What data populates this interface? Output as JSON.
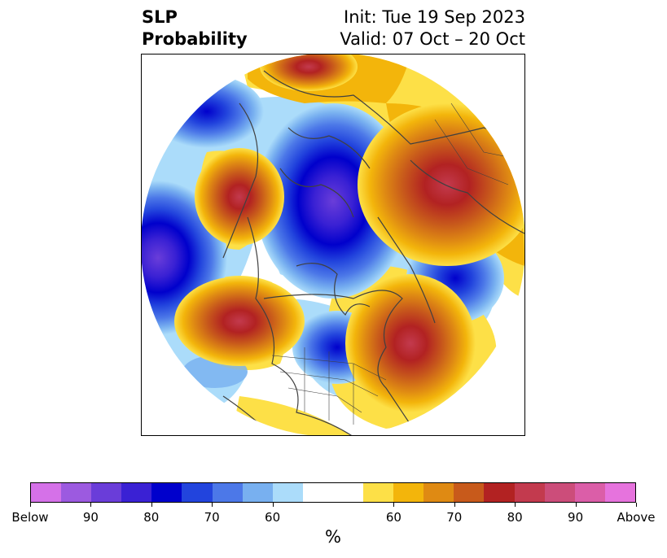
{
  "title": {
    "left_line1": "SLP",
    "left_line2": "Probability",
    "right_line1": "Init: Tue 19 Sep 2023",
    "right_line2": "Valid: 07 Oct – 20 Oct"
  },
  "colorbar": {
    "colors": [
      "#d571e8",
      "#9c5ae0",
      "#6a3dd9",
      "#3a21d4",
      "#0000cc",
      "#2244dd",
      "#4c78e8",
      "#78b0f0",
      "#abdcfa",
      "#ffffff",
      "#ffffff",
      "#fde047",
      "#f3b50b",
      "#df8a13",
      "#c85a1b",
      "#b22222",
      "#c33a4e",
      "#cc4d7a",
      "#db5ea8",
      "#e673dd"
    ],
    "tick_labels": [
      "Below",
      "90",
      "80",
      "70",
      "60",
      "60",
      "70",
      "80",
      "90",
      "Above"
    ],
    "unit_label": "%"
  },
  "map": {
    "projection": "north-polar-stereographic",
    "anomaly_centers": [
      {
        "name": "pacific-low",
        "sign": "below",
        "level": "80-90"
      },
      {
        "name": "arctic-low",
        "sign": "below",
        "level": "80-90"
      },
      {
        "name": "hudson-low",
        "sign": "below",
        "level": "70-80"
      },
      {
        "name": "atlantic-low",
        "sign": "below",
        "level": "80"
      },
      {
        "name": "aleutian-high",
        "sign": "above",
        "level": "80"
      },
      {
        "name": "alaska-high",
        "sign": "above",
        "level": "80"
      },
      {
        "name": "gulf-of-alaska-high",
        "sign": "above",
        "level": "80"
      },
      {
        "name": "east-canada-high",
        "sign": "above",
        "level": "80"
      },
      {
        "name": "siberia-high",
        "sign": "above",
        "level": "80"
      }
    ]
  }
}
